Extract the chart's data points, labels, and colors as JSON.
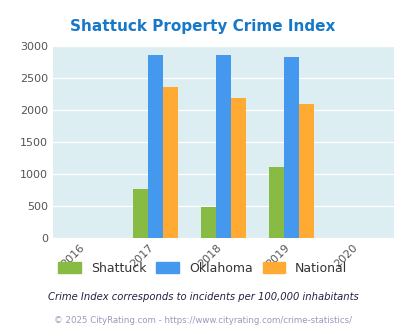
{
  "title": "Shattuck Property Crime Index",
  "title_color": "#1878c8",
  "years": [
    2016,
    2017,
    2018,
    2019,
    2020
  ],
  "bar_years": [
    2017,
    2018,
    2019
  ],
  "shattuck": [
    760,
    480,
    1110
  ],
  "oklahoma": [
    2860,
    2860,
    2830
  ],
  "national": [
    2360,
    2190,
    2100
  ],
  "shattuck_color": "#88bb44",
  "oklahoma_color": "#4499ee",
  "national_color": "#ffaa33",
  "ylim": [
    0,
    3000
  ],
  "yticks": [
    0,
    500,
    1000,
    1500,
    2000,
    2500,
    3000
  ],
  "bg_color": "#ddeef2",
  "legend_labels": [
    "Shattuck",
    "Oklahoma",
    "National"
  ],
  "footnote1": "Crime Index corresponds to incidents per 100,000 inhabitants",
  "footnote2": "© 2025 CityRating.com - https://www.cityrating.com/crime-statistics/",
  "footnote1_color": "#222244",
  "footnote2_color": "#9999bb",
  "bar_width": 0.22,
  "tick_fontsize": 8,
  "legend_fontsize": 9,
  "title_fontsize": 11
}
